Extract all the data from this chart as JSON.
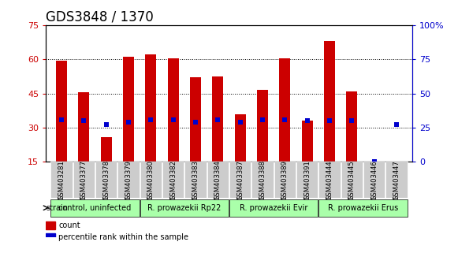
{
  "title": "GDS3848 / 1370",
  "samples": [
    "GSM403281",
    "GSM403377",
    "GSM403378",
    "GSM403379",
    "GSM403380",
    "GSM403382",
    "GSM403383",
    "GSM403384",
    "GSM403387",
    "GSM403388",
    "GSM403389",
    "GSM403391",
    "GSM403444",
    "GSM403445",
    "GSM403446",
    "GSM403447"
  ],
  "counts": [
    59.5,
    45.5,
    26.0,
    61.0,
    62.0,
    60.5,
    52.0,
    52.5,
    36.0,
    46.5,
    60.5,
    33.0,
    68.0,
    46.0,
    15.0,
    15.0
  ],
  "percentiles": [
    31,
    30,
    27,
    29,
    31,
    31,
    29,
    31,
    29,
    31,
    31,
    30,
    30,
    30,
    0,
    27
  ],
  "ylim_left": [
    15,
    75
  ],
  "ylim_right": [
    0,
    100
  ],
  "yticks_left": [
    15,
    30,
    45,
    60,
    75
  ],
  "yticks_right": [
    0,
    25,
    50,
    75,
    100
  ],
  "bar_color": "#cc0000",
  "dot_color": "#0000cc",
  "grid_color": "#000000",
  "bg_color": "#ffffff",
  "strain_groups": [
    {
      "label": "control, uninfected",
      "start": 0,
      "end": 3,
      "color": "#ccffcc"
    },
    {
      "label": "R. prowazekii Rp22",
      "start": 4,
      "end": 7,
      "color": "#ccffcc"
    },
    {
      "label": "R. prowazekii Evir",
      "start": 8,
      "end": 11,
      "color": "#ccffcc"
    },
    {
      "label": "R. prowazekii Erus",
      "start": 12,
      "end": 15,
      "color": "#ccffcc"
    }
  ],
  "xlabel_rotation": 90,
  "title_fontsize": 12,
  "tick_fontsize": 8,
  "label_fontsize": 8,
  "left_tick_color": "#cc0000",
  "right_tick_color": "#0000cc",
  "bar_width": 0.5,
  "dot_size": 6
}
